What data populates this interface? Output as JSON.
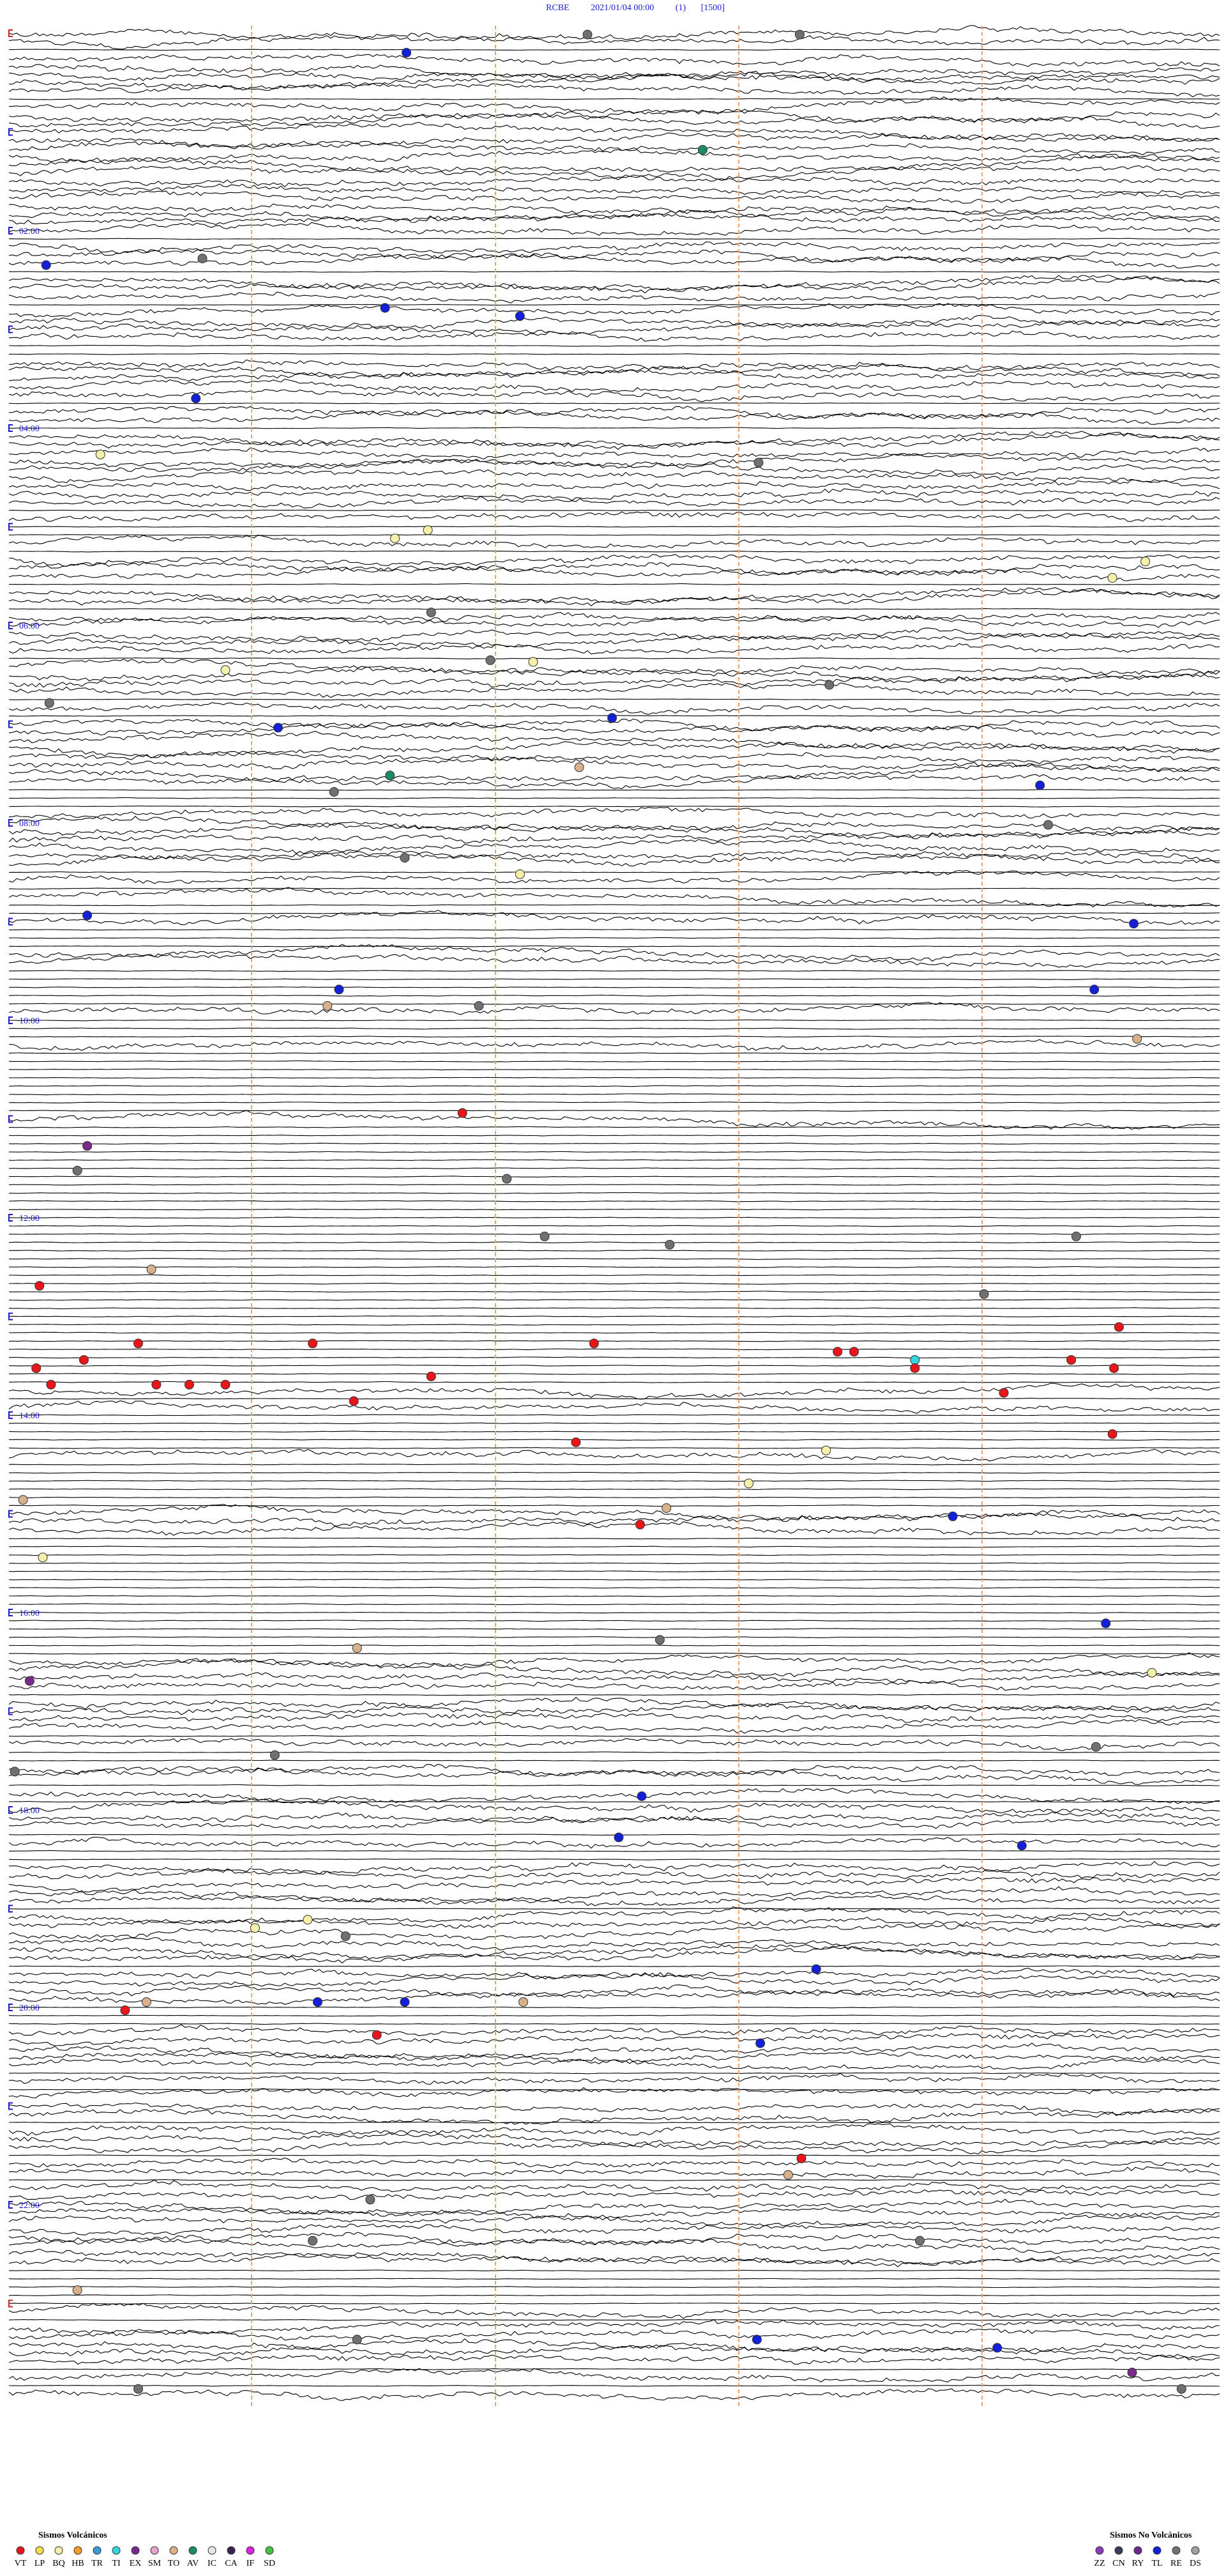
{
  "header": {
    "station": "RCBE",
    "datetime": "2021/01/04 00:00",
    "channel": "(1)",
    "scale": "[1500]"
  },
  "hour_labels": [
    "02:00",
    "04:00",
    "06:00",
    "08:00",
    "10:00",
    "12:00",
    "14:00",
    "16:00",
    "18:00",
    "20:00",
    "22:00"
  ],
  "legend_volcanic": {
    "title": "Sismos Volcánicos",
    "items": [
      {
        "code": "VT",
        "color": "#e8161b"
      },
      {
        "code": "LP",
        "color": "#f2e14c"
      },
      {
        "code": "BQ",
        "color": "#f5f0a8"
      },
      {
        "code": "HB",
        "color": "#f39a2c"
      },
      {
        "code": "TR",
        "color": "#3a9ad9"
      },
      {
        "code": "TI",
        "color": "#33d6e0"
      },
      {
        "code": "EX",
        "color": "#7a2a8c"
      },
      {
        "code": "SM",
        "color": "#e7a2d0"
      },
      {
        "code": "TO",
        "color": "#d8b08c"
      },
      {
        "code": "AV",
        "color": "#1d8a66"
      },
      {
        "code": "IC",
        "color": "#e6e6e6"
      },
      {
        "code": "CA",
        "color": "#3b2350"
      },
      {
        "code": "IF",
        "color": "#e020e0"
      },
      {
        "code": "SD",
        "color": "#44c244"
      }
    ]
  },
  "legend_non_volcanic": {
    "title": "Sismos No Volcánicos",
    "items": [
      {
        "code": "ZZ",
        "color": "#8a3bb8"
      },
      {
        "code": "CN",
        "color": "#3a3a5a"
      },
      {
        "code": "RY",
        "color": "#6a2a8a"
      },
      {
        "code": "TL",
        "color": "#1420d8"
      },
      {
        "code": "RE",
        "color": "#707070"
      },
      {
        "code": "DS",
        "color": "#a0a0a0"
      }
    ]
  }
}
